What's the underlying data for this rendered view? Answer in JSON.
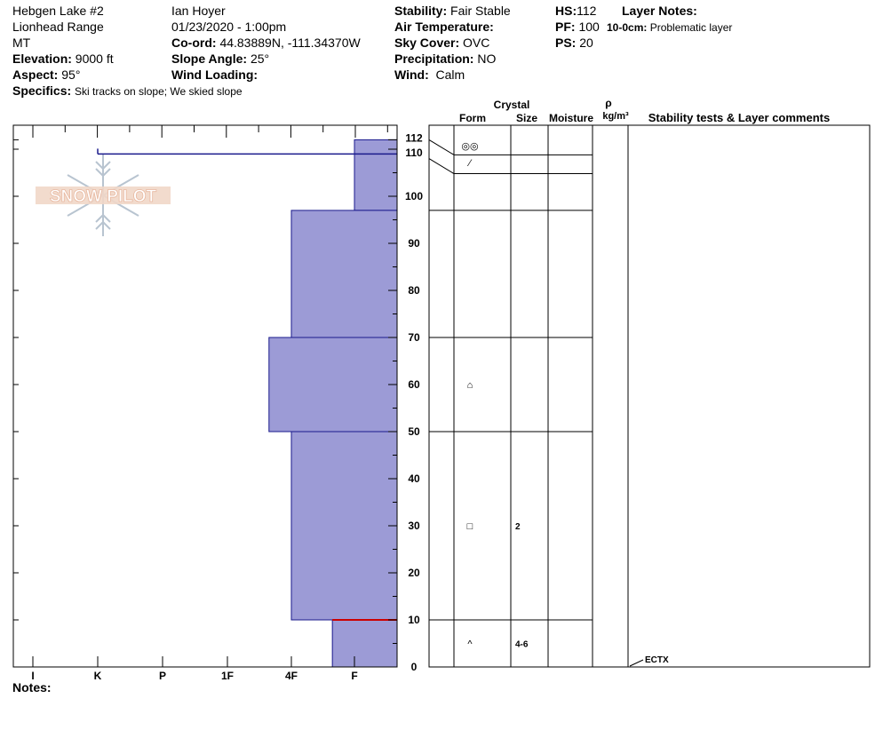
{
  "header": {
    "site": "Hebgen Lake #2",
    "range": "Lionhead Range",
    "state": "MT",
    "elevation_label": "Elevation:",
    "elevation_value": "9000 ft",
    "aspect_label": "Aspect:",
    "aspect_value": "95°",
    "specifics_label": "Specifics:",
    "specifics_value": "Ski tracks on slope; We skied slope",
    "observer": "Ian Hoyer",
    "datetime": "01/23/2020 - 1:00pm",
    "coord_label": "Co-ord:",
    "coord_value": "44.83889N, -111.34370W",
    "slope_label": "Slope Angle:",
    "slope_value": "25°",
    "wind_loading_label": "Wind Loading:",
    "stability_label": "Stability:",
    "stability_value": "Fair Stable",
    "air_temp_label": "Air Temperature:",
    "sky_label": "Sky Cover:",
    "sky_value": "OVC",
    "precip_label": "Precipitation:",
    "precip_value": "NO",
    "wind_label": "Wind:",
    "wind_value": "Calm",
    "hs_label": "HS:",
    "hs_value": "112",
    "pf_label": "PF:",
    "pf_value": "100",
    "ps_label": "PS:",
    "ps_value": "20",
    "layer_notes_label": "Layer Notes:",
    "layer_note_depth": "10-0cm:",
    "layer_note_text": "Problematic layer"
  },
  "logo": {
    "text": "SNOW PILOT"
  },
  "notes_label": "Notes:",
  "columns": {
    "crystal": "Crystal",
    "form": "Form",
    "size": "Size",
    "moisture": "Moisture",
    "rho": "ρ",
    "density_unit": "kg/m³",
    "stability": "Stability tests & Layer comments"
  },
  "chart_data": {
    "type": "bar",
    "orientation": "horizontal-step",
    "ylim": [
      0,
      112
    ],
    "yticks": [
      "0",
      "10",
      "20",
      "30",
      "40",
      "50",
      "60",
      "70",
      "80",
      "90",
      "100",
      "110",
      "112"
    ],
    "hardness_scale": [
      "I",
      "K",
      "P",
      "1F",
      "4F",
      "F"
    ],
    "layers": [
      {
        "top": 112,
        "bottom": 97,
        "hardness_index": 5,
        "form_symbol": "⁄",
        "size": ""
      },
      {
        "top": 97,
        "bottom": 70,
        "hardness_index": 4,
        "form_symbol": "",
        "size": ""
      },
      {
        "top": 70,
        "bottom": 50,
        "hardness_index": 3.65,
        "form_symbol": "⌂",
        "size": ""
      },
      {
        "top": 50,
        "bottom": 10,
        "hardness_index": 4,
        "form_symbol": "□",
        "size": "2"
      },
      {
        "top": 10,
        "bottom": 0,
        "hardness_index": 4.65,
        "form_symbol": "^",
        "size": "4-6"
      }
    ],
    "surface_layer": {
      "top": 112,
      "bottom": 108,
      "form_symbol": "◎◎"
    },
    "boundaries": [
      112,
      108,
      97,
      70,
      50,
      10
    ],
    "problem_layer_depth": 10,
    "stability_tests": [
      {
        "label": "ECTX",
        "depth": 0
      }
    ],
    "colors": {
      "bar_fill": "#9c9bd6",
      "bar_edge": "#1a1a8c",
      "problem_line": "#cc0000"
    }
  }
}
